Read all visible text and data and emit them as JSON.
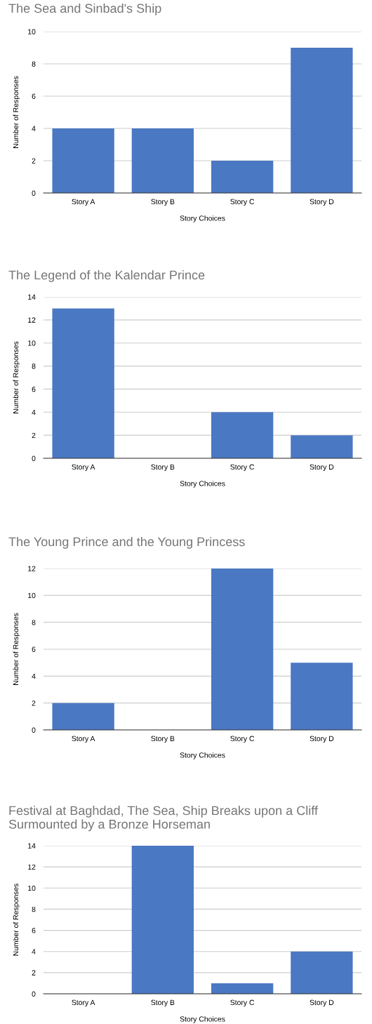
{
  "chart_data": [
    {
      "type": "bar",
      "title": "The Sea and Sinbad's Ship",
      "xlabel": "Story Choices",
      "ylabel": "Number of Responses",
      "categories": [
        "Story A",
        "Story B",
        "Story C",
        "Story D"
      ],
      "values": [
        4,
        4,
        2,
        9
      ],
      "color": "#4a78c2",
      "ylim": [
        0,
        10
      ],
      "yticks": [
        0,
        2,
        4,
        6,
        8,
        10
      ],
      "grid": "y"
    },
    {
      "type": "bar",
      "title": "The Legend of the Kalendar Prince",
      "xlabel": "Story Choices",
      "ylabel": "Number of Responses",
      "categories": [
        "Story A",
        "Story B",
        "Story C",
        "Story D"
      ],
      "values": [
        13,
        0,
        4,
        2
      ],
      "color": "#4a78c2",
      "ylim": [
        0,
        14
      ],
      "yticks": [
        0,
        2,
        4,
        6,
        8,
        10,
        12,
        14
      ],
      "grid": "y"
    },
    {
      "type": "bar",
      "title": "The Young Prince and the Young Princess",
      "xlabel": "Story Choices",
      "ylabel": "Number of Responses",
      "categories": [
        "Story A",
        "Story B",
        "Story C",
        "Story D"
      ],
      "values": [
        2,
        0,
        12,
        5
      ],
      "color": "#4a78c2",
      "ylim": [
        0,
        12
      ],
      "yticks": [
        0,
        2,
        4,
        6,
        8,
        10,
        12
      ],
      "grid": "y"
    },
    {
      "type": "bar",
      "title": "Festival at Baghdad, The Sea, Ship Breaks upon a Cliff Surmounted by a Bronze Horseman",
      "xlabel": "Story Choices",
      "ylabel": "Number of Responses",
      "categories": [
        "Story A",
        "Story B",
        "Story C",
        "Story D"
      ],
      "values": [
        0,
        14,
        1,
        4
      ],
      "color": "#4a78c2",
      "ylim": [
        0,
        14
      ],
      "yticks": [
        0,
        2,
        4,
        6,
        8,
        10,
        12,
        14
      ],
      "grid": "y"
    }
  ]
}
